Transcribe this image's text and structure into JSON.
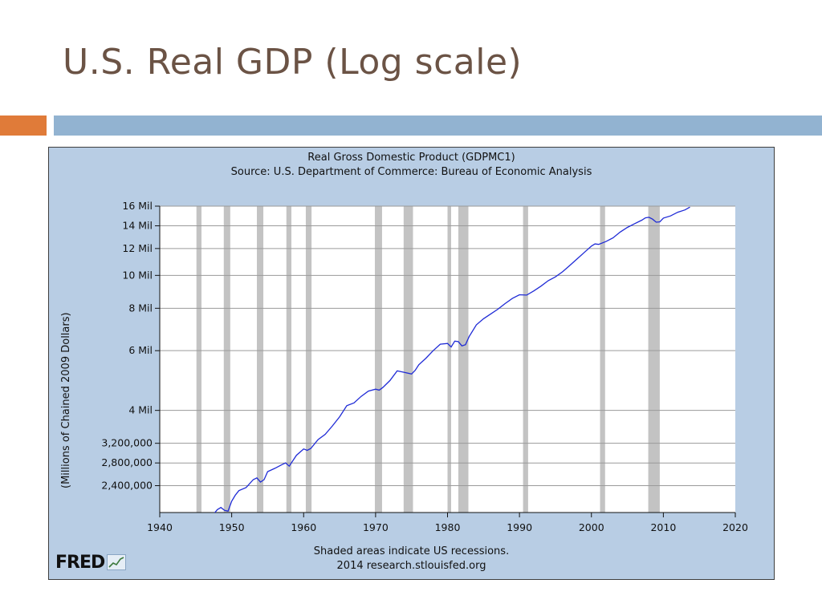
{
  "slide": {
    "title": "U.S. Real GDP (Log scale)",
    "colors": {
      "title": "#6b5345",
      "accent_orange": "#e07b39",
      "accent_blue": "#92b3d1"
    }
  },
  "chart_data": {
    "type": "line",
    "title": "Real Gross Domestic Product (GDPMC1)",
    "subtitle": "Source: U.S. Department of Commerce: Bureau of Economic Analysis",
    "xlabel": "",
    "ylabel": "(Millions of Chained 2009 Dollars)",
    "y_scale": "log",
    "xlim": [
      1940,
      2020
    ],
    "ylim": [
      2000000,
      16000000
    ],
    "x_ticks": [
      1940,
      1950,
      1960,
      1970,
      1980,
      1990,
      2000,
      2010,
      2020
    ],
    "y_ticks": [
      {
        "value": 16000000,
        "label": "16 Mil"
      },
      {
        "value": 14000000,
        "label": "14 Mil"
      },
      {
        "value": 12000000,
        "label": "12 Mil"
      },
      {
        "value": 10000000,
        "label": "10 Mil"
      },
      {
        "value": 8000000,
        "label": "8 Mil"
      },
      {
        "value": 6000000,
        "label": "6 Mil"
      },
      {
        "value": 4000000,
        "label": "4 Mil"
      },
      {
        "value": 3200000,
        "label": "3,200,000"
      },
      {
        "value": 2800000,
        "label": "2,800,000"
      },
      {
        "value": 2400000,
        "label": "2,400,000"
      }
    ],
    "grid": true,
    "recessions": [
      [
        1945.1,
        1945.8
      ],
      [
        1948.9,
        1949.8
      ],
      [
        1953.5,
        1954.4
      ],
      [
        1957.6,
        1958.3
      ],
      [
        1960.3,
        1961.1
      ],
      [
        1969.9,
        1970.9
      ],
      [
        1973.9,
        1975.2
      ],
      [
        1980.0,
        1980.5
      ],
      [
        1981.5,
        1982.9
      ],
      [
        1990.5,
        1991.2
      ],
      [
        2001.2,
        2001.9
      ],
      [
        2007.9,
        2009.5
      ]
    ],
    "series": [
      {
        "color": "#1f2bd6",
        "x": [
          1947,
          1947.5,
          1948,
          1948.5,
          1949,
          1949.5,
          1950,
          1950.5,
          1951,
          1952,
          1953,
          1953.5,
          1954,
          1954.5,
          1955,
          1956,
          1957,
          1957.5,
          1958,
          1959,
          1960,
          1960.5,
          1961,
          1962,
          1963,
          1964,
          1965,
          1966,
          1967,
          1968,
          1969,
          1970,
          1970.5,
          1971,
          1972,
          1973,
          1974,
          1975,
          1975.5,
          1976,
          1977,
          1978,
          1979,
          1980,
          1980.5,
          1981,
          1981.5,
          1982,
          1982.5,
          1983,
          1984,
          1985,
          1986,
          1987,
          1988,
          1989,
          1990,
          1991,
          1992,
          1993,
          1994,
          1995,
          1996,
          1997,
          1998,
          1999,
          2000,
          2000.5,
          2001,
          2002,
          2003,
          2004,
          2005,
          2006,
          2007,
          2007.5,
          2008,
          2008.5,
          2009,
          2009.5,
          2010,
          2011,
          2012,
          2013,
          2013.7
        ],
        "y": [
          1930000,
          1980000,
          2040000,
          2070000,
          2030000,
          2020000,
          2160000,
          2250000,
          2320000,
          2370000,
          2500000,
          2530000,
          2460000,
          2500000,
          2640000,
          2700000,
          2770000,
          2800000,
          2740000,
          2950000,
          3080000,
          3050000,
          3090000,
          3280000,
          3400000,
          3600000,
          3830000,
          4130000,
          4210000,
          4400000,
          4560000,
          4620000,
          4590000,
          4670000,
          4900000,
          5230000,
          5180000,
          5120000,
          5250000,
          5450000,
          5700000,
          6000000,
          6270000,
          6300000,
          6150000,
          6400000,
          6380000,
          6200000,
          6250000,
          6600000,
          7150000,
          7450000,
          7700000,
          7950000,
          8260000,
          8550000,
          8770000,
          8750000,
          9000000,
          9300000,
          9650000,
          9900000,
          10250000,
          10700000,
          11180000,
          11680000,
          12200000,
          12380000,
          12340000,
          12580000,
          12900000,
          13420000,
          13850000,
          14200000,
          14550000,
          14780000,
          14830000,
          14650000,
          14350000,
          14380000,
          14750000,
          14970000,
          15350000,
          15600000,
          15900000
        ]
      }
    ],
    "footer": "Shaded areas indicate US recessions.",
    "footer2": "2014 research.stlouisfed.org",
    "logo_text": "FRED",
    "colors": {
      "panel_bg": "#b8cde4",
      "plot_bg": "#ffffff",
      "recession": "#c3c3c3",
      "grid": "#9a9a9a",
      "line": "#1f2bd6"
    }
  }
}
